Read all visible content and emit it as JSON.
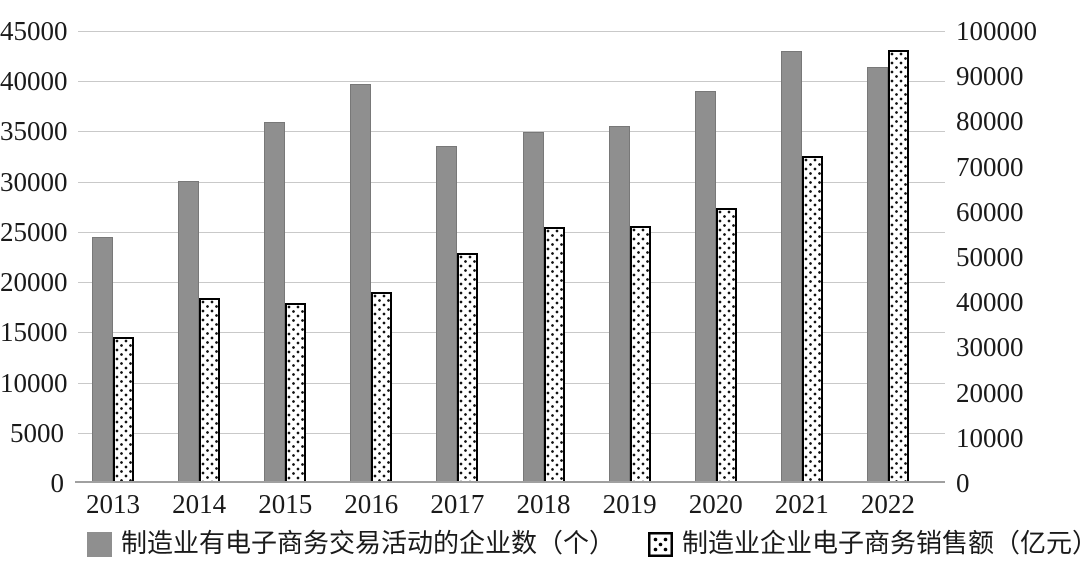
{
  "chart_data": {
    "type": "bar",
    "title": "",
    "xlabel": "",
    "ylabel_left": "",
    "ylabel_right": "",
    "grid": "horizontal",
    "legend_position": "bottom",
    "categories": [
      "2013",
      "2014",
      "2015",
      "2016",
      "2017",
      "2018",
      "2019",
      "2020",
      "2021",
      "2022"
    ],
    "series": [
      {
        "name": "制造业有电子商务交易活动的企业数（个）",
        "axis": "left",
        "style": "solid-gray",
        "values": [
          24300,
          29900,
          35700,
          39500,
          33400,
          34700,
          35300,
          38800,
          42800,
          41200
        ]
      },
      {
        "name": "制造业企业电子商务销售额（亿元）",
        "axis": "right",
        "style": "white-dotted",
        "values": [
          31900,
          40500,
          39400,
          41800,
          50400,
          56100,
          56500,
          60400,
          71800,
          95300
        ]
      }
    ],
    "left_axis": {
      "min": 0,
      "max": 45000,
      "step": 5000,
      "tick_labels": [
        "0",
        "5000",
        "10000",
        "15000",
        "20000",
        "25000",
        "30000",
        "35000",
        "40000",
        "45000"
      ]
    },
    "right_axis": {
      "min": 0,
      "max": 100000,
      "step": 10000,
      "tick_labels": [
        "0",
        "10000",
        "20000",
        "30000",
        "40000",
        "50000",
        "60000",
        "70000",
        "80000",
        "90000",
        "100000"
      ]
    },
    "colors": {
      "gray_bar": "#8f8f8f",
      "gray_bar_border": "#787878",
      "dotted_bar_fill": "#ffffff",
      "dotted_bar_border": "#000000",
      "gridline": "#c9c9c9",
      "axis_line": "#a0a0a0",
      "text": "#1a1a1a",
      "background": "#ffffff"
    }
  }
}
